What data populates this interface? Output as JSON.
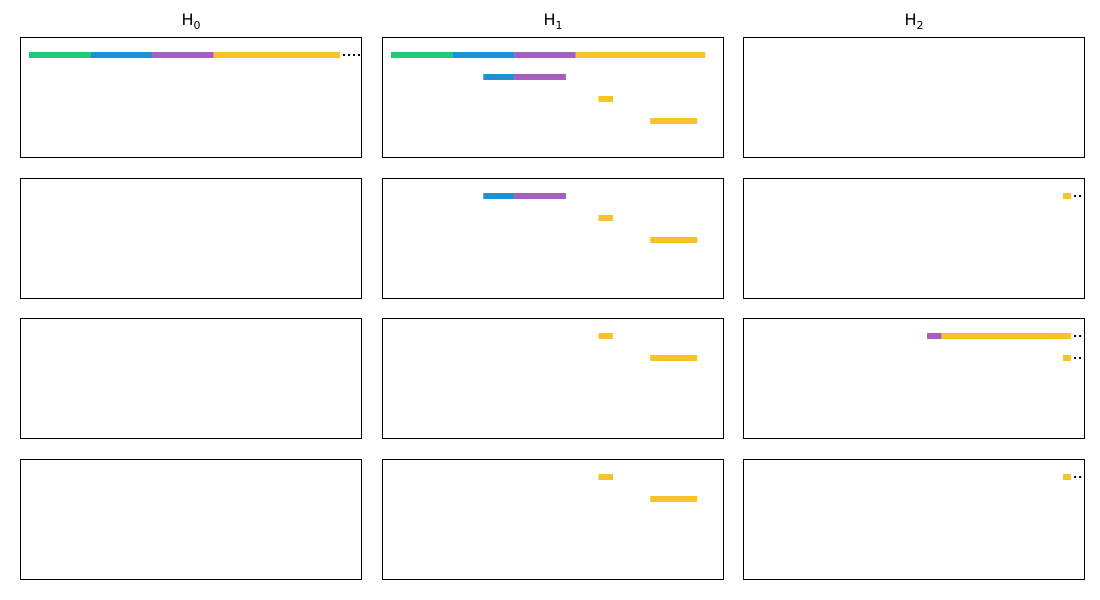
{
  "columns": [
    {
      "base": "H",
      "sub": "0"
    },
    {
      "base": "H",
      "sub": "1"
    },
    {
      "base": "H",
      "sub": "2"
    }
  ],
  "colors": {
    "green": "#1fc97a",
    "blue": "#1a93d6",
    "purple": "#a65fbf",
    "yellow": "#f7c427",
    "infinity_dots": "#000000"
  },
  "chart_data": {
    "type": "barcode",
    "xlim": [
      0,
      1
    ],
    "infinite_marker": "dotted",
    "panels": [
      {
        "row": 0,
        "col": 0,
        "bars": [
          {
            "segments": [
              {
                "start": 0.0,
                "end": 0.19,
                "color": "green"
              },
              {
                "start": 0.19,
                "end": 0.38,
                "color": "blue"
              },
              {
                "start": 0.38,
                "end": 0.57,
                "color": "purple"
              },
              {
                "start": 0.57,
                "end": 0.96,
                "color": "yellow"
              }
            ],
            "infinite": true
          }
        ]
      },
      {
        "row": 0,
        "col": 1,
        "bars": [
          {
            "segments": [
              {
                "start": 0.0,
                "end": 0.19,
                "color": "green"
              },
              {
                "start": 0.19,
                "end": 0.38,
                "color": "blue"
              },
              {
                "start": 0.38,
                "end": 0.57,
                "color": "purple"
              },
              {
                "start": 0.57,
                "end": 0.97,
                "color": "yellow"
              }
            ],
            "infinite": false
          },
          {
            "segments": [
              {
                "start": 0.285,
                "end": 0.38,
                "color": "blue"
              },
              {
                "start": 0.38,
                "end": 0.54,
                "color": "purple"
              }
            ],
            "infinite": false
          },
          {
            "segments": [
              {
                "start": 0.64,
                "end": 0.685,
                "color": "yellow"
              }
            ],
            "infinite": false
          },
          {
            "segments": [
              {
                "start": 0.8,
                "end": 0.945,
                "color": "yellow"
              }
            ],
            "infinite": false
          }
        ]
      },
      {
        "row": 0,
        "col": 2,
        "bars": []
      },
      {
        "row": 1,
        "col": 0,
        "bars": []
      },
      {
        "row": 1,
        "col": 1,
        "bars": [
          {
            "segments": [
              {
                "start": 0.285,
                "end": 0.38,
                "color": "blue"
              },
              {
                "start": 0.38,
                "end": 0.54,
                "color": "purple"
              }
            ],
            "infinite": false
          },
          {
            "segments": [
              {
                "start": 0.64,
                "end": 0.685,
                "color": "yellow"
              }
            ],
            "infinite": false
          },
          {
            "segments": [
              {
                "start": 0.8,
                "end": 0.945,
                "color": "yellow"
              }
            ],
            "infinite": false
          }
        ]
      },
      {
        "row": 1,
        "col": 2,
        "bars": [
          {
            "segments": [
              {
                "start": 0.96,
                "end": 0.985,
                "color": "yellow"
              }
            ],
            "infinite": true
          }
        ]
      },
      {
        "row": 2,
        "col": 0,
        "bars": []
      },
      {
        "row": 2,
        "col": 1,
        "bars": [
          {
            "segments": [
              {
                "start": 0.64,
                "end": 0.685,
                "color": "yellow"
              }
            ],
            "infinite": false
          },
          {
            "segments": [
              {
                "start": 0.8,
                "end": 0.945,
                "color": "yellow"
              }
            ],
            "infinite": false
          }
        ]
      },
      {
        "row": 2,
        "col": 2,
        "bars": [
          {
            "segments": [
              {
                "start": 0.54,
                "end": 0.585,
                "color": "purple"
              },
              {
                "start": 0.585,
                "end": 0.985,
                "color": "yellow"
              }
            ],
            "infinite": true
          },
          {
            "segments": [
              {
                "start": 0.96,
                "end": 0.985,
                "color": "yellow"
              }
            ],
            "infinite": true
          }
        ]
      },
      {
        "row": 3,
        "col": 0,
        "bars": []
      },
      {
        "row": 3,
        "col": 1,
        "bars": [
          {
            "segments": [
              {
                "start": 0.64,
                "end": 0.685,
                "color": "yellow"
              }
            ],
            "infinite": false
          },
          {
            "segments": [
              {
                "start": 0.8,
                "end": 0.945,
                "color": "yellow"
              }
            ],
            "infinite": false
          }
        ]
      },
      {
        "row": 3,
        "col": 2,
        "bars": [
          {
            "segments": [
              {
                "start": 0.96,
                "end": 0.985,
                "color": "yellow"
              }
            ],
            "infinite": true
          }
        ]
      }
    ]
  }
}
